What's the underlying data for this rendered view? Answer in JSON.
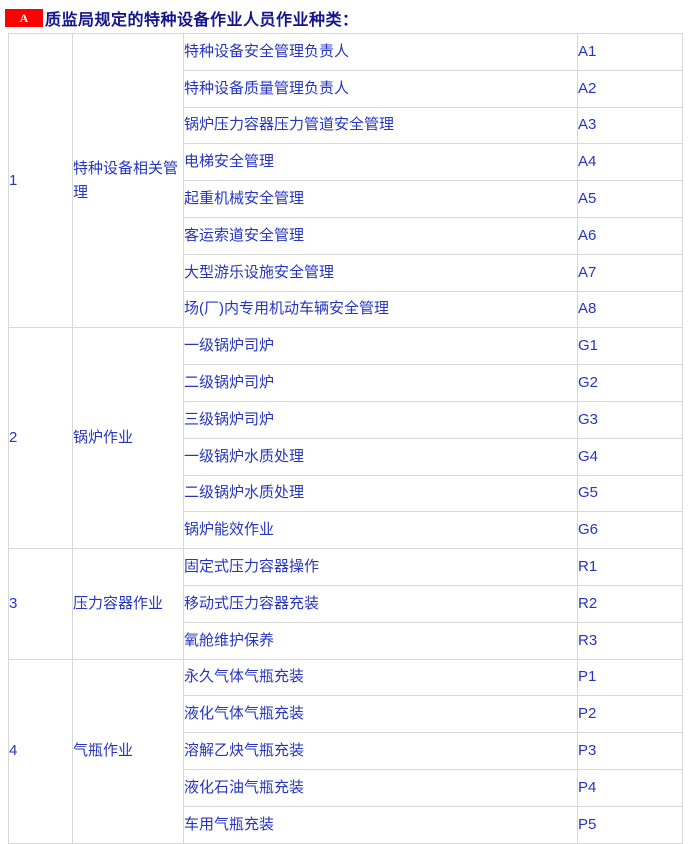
{
  "header": {
    "badge_label": "A",
    "title": "质监局规定的特种设备作业人员作业种类："
  },
  "table": {
    "groups": [
      {
        "no": "1",
        "category": "特种设备相关管理",
        "items": [
          {
            "name": "特种设备安全管理负责人",
            "code": "A1"
          },
          {
            "name": "特种设备质量管理负责人",
            "code": "A2"
          },
          {
            "name": "锅炉压力容器压力管道安全管理",
            "code": "A3"
          },
          {
            "name": "电梯安全管理",
            "code": "A4"
          },
          {
            "name": "起重机械安全管理",
            "code": "A5"
          },
          {
            "name": "客运索道安全管理",
            "code": "A6"
          },
          {
            "name": "大型游乐设施安全管理",
            "code": "A7"
          },
          {
            "name": "场(厂)内专用机动车辆安全管理",
            "code": "A8"
          }
        ]
      },
      {
        "no": "2",
        "category": "锅炉作业",
        "items": [
          {
            "name": "一级锅炉司炉",
            "code": "G1"
          },
          {
            "name": "二级锅炉司炉",
            "code": "G2"
          },
          {
            "name": "三级锅炉司炉",
            "code": "G3"
          },
          {
            "name": "一级锅炉水质处理",
            "code": "G4"
          },
          {
            "name": "二级锅炉水质处理",
            "code": "G5"
          },
          {
            "name": "锅炉能效作业",
            "code": "G6"
          }
        ]
      },
      {
        "no": "3",
        "category": "压力容器作业",
        "items": [
          {
            "name": "固定式压力容器操作",
            "code": "R1"
          },
          {
            "name": "移动式压力容器充装",
            "code": "R2"
          },
          {
            "name": "氧舱维护保养",
            "code": "R3"
          }
        ]
      },
      {
        "no": "4",
        "category": "气瓶作业",
        "items": [
          {
            "name": "永久气体气瓶充装",
            "code": "P1"
          },
          {
            "name": "液化气体气瓶充装",
            "code": "P2"
          },
          {
            "name": "溶解乙炔气瓶充装",
            "code": "P3"
          },
          {
            "name": "液化石油气瓶充装",
            "code": "P4"
          },
          {
            "name": "车用气瓶充装",
            "code": "P5"
          }
        ]
      }
    ]
  },
  "colors": {
    "badge_red": "#fd0101",
    "title_navy": "#14148c",
    "cell_text_blue": "#2535c1",
    "border_gray": "#d7d7d7"
  }
}
